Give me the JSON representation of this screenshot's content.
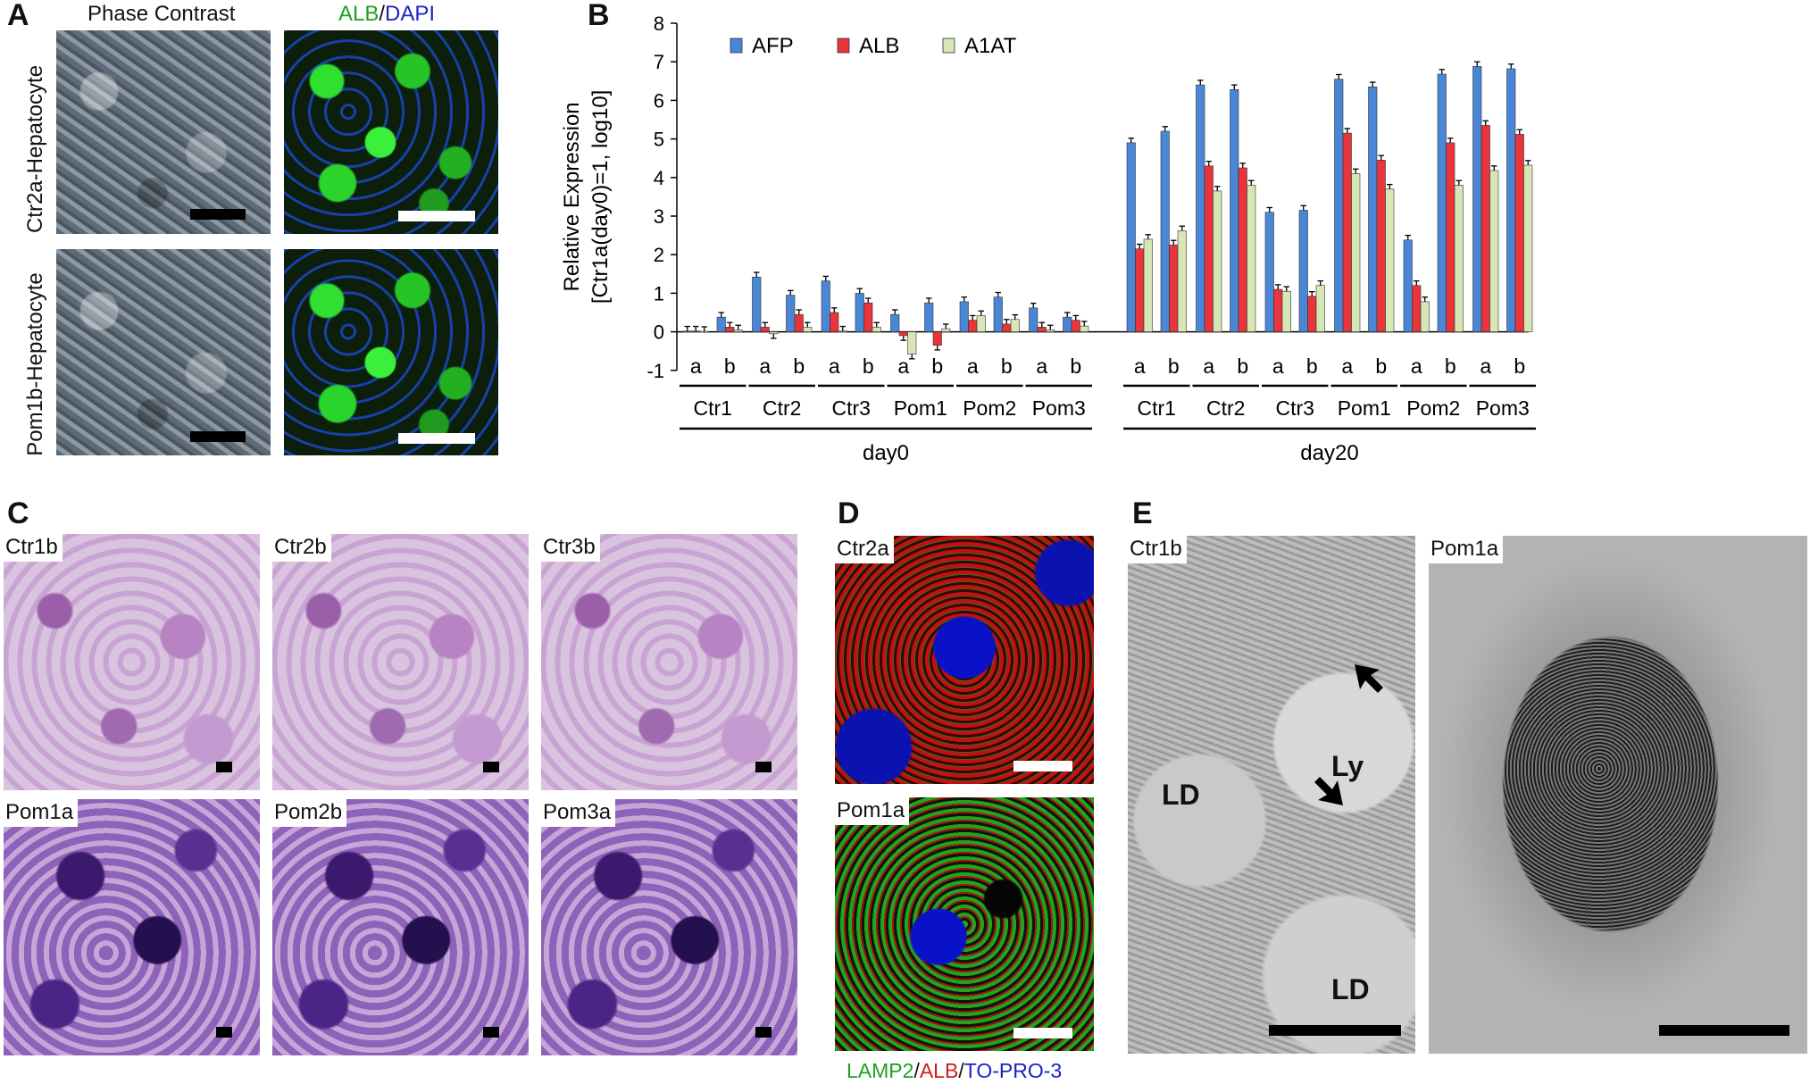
{
  "panel_A": {
    "letter": "A",
    "col1_header": "Phase Contrast",
    "col2_header_alb": "ALB",
    "col2_header_sep": "/",
    "col2_header_dapi": "DAPI",
    "row1_label": "Ctr2a-Hepatocyte",
    "row2_label": "Pom1b-Hepatocyte"
  },
  "panel_B": {
    "letter": "B"
  },
  "panel_C": {
    "letter": "C",
    "labels": [
      "Ctr1b",
      "Ctr2b",
      "Ctr3b",
      "Pom1a",
      "Pom2b",
      "Pom3a"
    ]
  },
  "panel_D": {
    "letter": "D",
    "labels": [
      "Ctr2a",
      "Pom1a"
    ],
    "caption_lamp2": "LAMP2",
    "caption_sep1": "/",
    "caption_alb": "ALB",
    "caption_sep2": "/",
    "caption_topro": "TO-PRO-3"
  },
  "panel_E": {
    "letter": "E",
    "labels": [
      "Ctr1b",
      "Pom1a"
    ],
    "annotations": [
      "LD",
      "Ly",
      "LD"
    ]
  },
  "colors": {
    "afp": "#4a86d6",
    "alb": "#e8343a",
    "a1at": "#d6e6b4",
    "green": "#1fa01f",
    "red": "#d01c1c",
    "blue": "#1a22c8"
  },
  "chart_data": {
    "type": "bar",
    "ylabel_line1": "Relative Expression",
    "ylabel_line2": "[Ctr1a(day0)=1, log10]",
    "ylim": [
      -1,
      8
    ],
    "yticks": [
      -1,
      0,
      1,
      2,
      3,
      4,
      5,
      6,
      7,
      8
    ],
    "legend_position": "top-left",
    "series_names": [
      "AFP",
      "ALB",
      "A1AT"
    ],
    "groups": [
      {
        "name": "day0",
        "lines": [
          {
            "name": "Ctr1",
            "clones": [
              {
                "label": "a",
                "values": [
                  0.02,
                  0.02,
                  0.01
                ]
              },
              {
                "label": "b",
                "values": [
                  0.38,
                  0.12,
                  0.05
                ]
              }
            ]
          },
          {
            "name": "Ctr2",
            "clones": [
              {
                "label": "a",
                "values": [
                  1.42,
                  0.12,
                  -0.05
                ]
              },
              {
                "label": "b",
                "values": [
                  0.95,
                  0.45,
                  0.12
                ]
              }
            ]
          },
          {
            "name": "Ctr3",
            "clones": [
              {
                "label": "a",
                "values": [
                  1.32,
                  0.5,
                  0.02
                ]
              },
              {
                "label": "b",
                "values": [
                  1.0,
                  0.75,
                  0.12
                ]
              }
            ]
          },
          {
            "name": "Pom1",
            "clones": [
              {
                "label": "a",
                "values": [
                  0.45,
                  -0.1,
                  -0.58
                ]
              },
              {
                "label": "b",
                "values": [
                  0.75,
                  -0.35,
                  0.08
                ]
              }
            ]
          },
          {
            "name": "Pom2",
            "clones": [
              {
                "label": "a",
                "values": [
                  0.78,
                  0.3,
                  0.42
                ]
              },
              {
                "label": "b",
                "values": [
                  0.9,
                  0.2,
                  0.32
                ]
              }
            ]
          },
          {
            "name": "Pom3",
            "clones": [
              {
                "label": "a",
                "values": [
                  0.62,
                  0.12,
                  0.05
                ]
              },
              {
                "label": "b",
                "values": [
                  0.38,
                  0.3,
                  0.15
                ]
              }
            ]
          }
        ]
      },
      {
        "name": "day20",
        "lines": [
          {
            "name": "Ctr1",
            "clones": [
              {
                "label": "a",
                "values": [
                  4.9,
                  2.15,
                  2.4
                ]
              },
              {
                "label": "b",
                "values": [
                  5.2,
                  2.25,
                  2.62
                ]
              }
            ]
          },
          {
            "name": "Ctr2",
            "clones": [
              {
                "label": "a",
                "values": [
                  6.4,
                  4.3,
                  3.65
                ]
              },
              {
                "label": "b",
                "values": [
                  6.28,
                  4.25,
                  3.8
                ]
              }
            ]
          },
          {
            "name": "Ctr3",
            "clones": [
              {
                "label": "a",
                "values": [
                  3.1,
                  1.1,
                  1.05
                ]
              },
              {
                "label": "b",
                "values": [
                  3.15,
                  0.92,
                  1.2
                ]
              }
            ]
          },
          {
            "name": "Pom1",
            "clones": [
              {
                "label": "a",
                "values": [
                  6.55,
                  5.15,
                  4.1
                ]
              },
              {
                "label": "b",
                "values": [
                  6.35,
                  4.45,
                  3.7
                ]
              }
            ]
          },
          {
            "name": "Pom2",
            "clones": [
              {
                "label": "a",
                "values": [
                  2.38,
                  1.2,
                  0.78
                ]
              },
              {
                "label": "b",
                "values": [
                  6.68,
                  4.9,
                  3.8
                ]
              }
            ]
          },
          {
            "name": "Pom3",
            "clones": [
              {
                "label": "a",
                "values": [
                  6.88,
                  5.35,
                  4.18
                ]
              },
              {
                "label": "b",
                "values": [
                  6.82,
                  5.12,
                  4.32
                ]
              }
            ]
          }
        ]
      }
    ]
  }
}
